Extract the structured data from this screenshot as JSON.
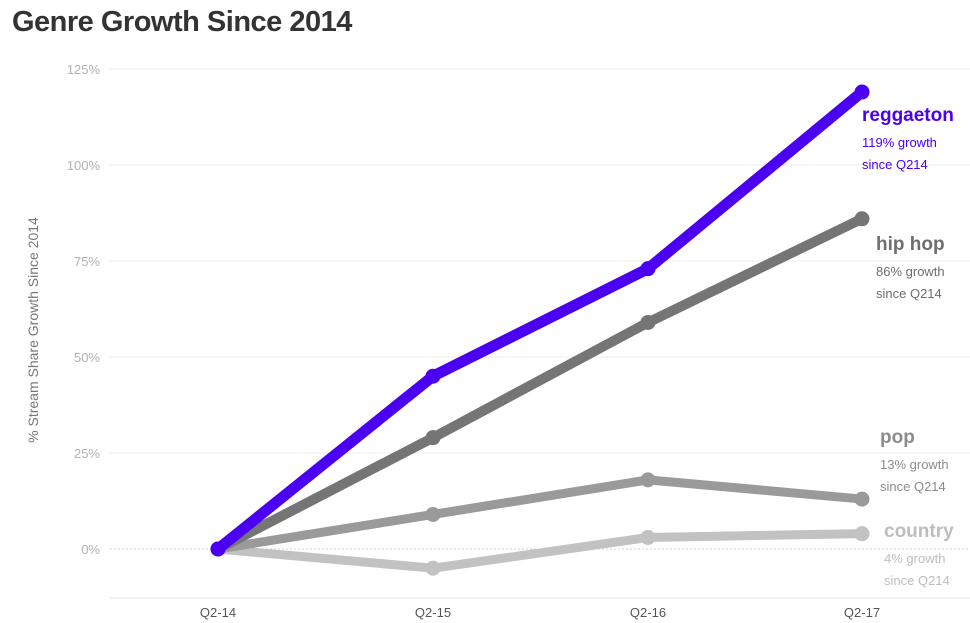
{
  "page": {
    "title": "Genre Growth Since 2014"
  },
  "chart_data": {
    "type": "line",
    "title": "Genre Growth Since 2014",
    "xlabel": "",
    "ylabel": "% Stream Share Growth Since 2014",
    "categories": [
      "Q2-14",
      "Q2-15",
      "Q2-16",
      "Q2-17"
    ],
    "ylim": [
      -10,
      125
    ],
    "yticks": [
      0,
      25,
      50,
      75,
      100,
      125
    ],
    "ytick_labels": [
      "0%",
      "25%",
      "50%",
      "75%",
      "100%",
      "125%"
    ],
    "grid": true,
    "series": [
      {
        "name": "country",
        "values": [
          0,
          -5,
          3,
          4
        ],
        "color": "#c2c2c2",
        "note_line1": "4% growth",
        "note_line2": "since Q214"
      },
      {
        "name": "pop",
        "values": [
          0,
          9,
          18,
          13
        ],
        "color": "#9a9a9a",
        "note_line1": "13% growth",
        "note_line2": "since Q214"
      },
      {
        "name": "hip hop",
        "values": [
          0,
          29,
          59,
          86
        ],
        "color": "#757575",
        "note_line1": "86% growth",
        "note_line2": "since Q214"
      },
      {
        "name": "reggaeton",
        "values": [
          0,
          45,
          73,
          119
        ],
        "color": "#4b00f2",
        "note_line1": "119% growth",
        "note_line2": "since Q214"
      }
    ]
  }
}
